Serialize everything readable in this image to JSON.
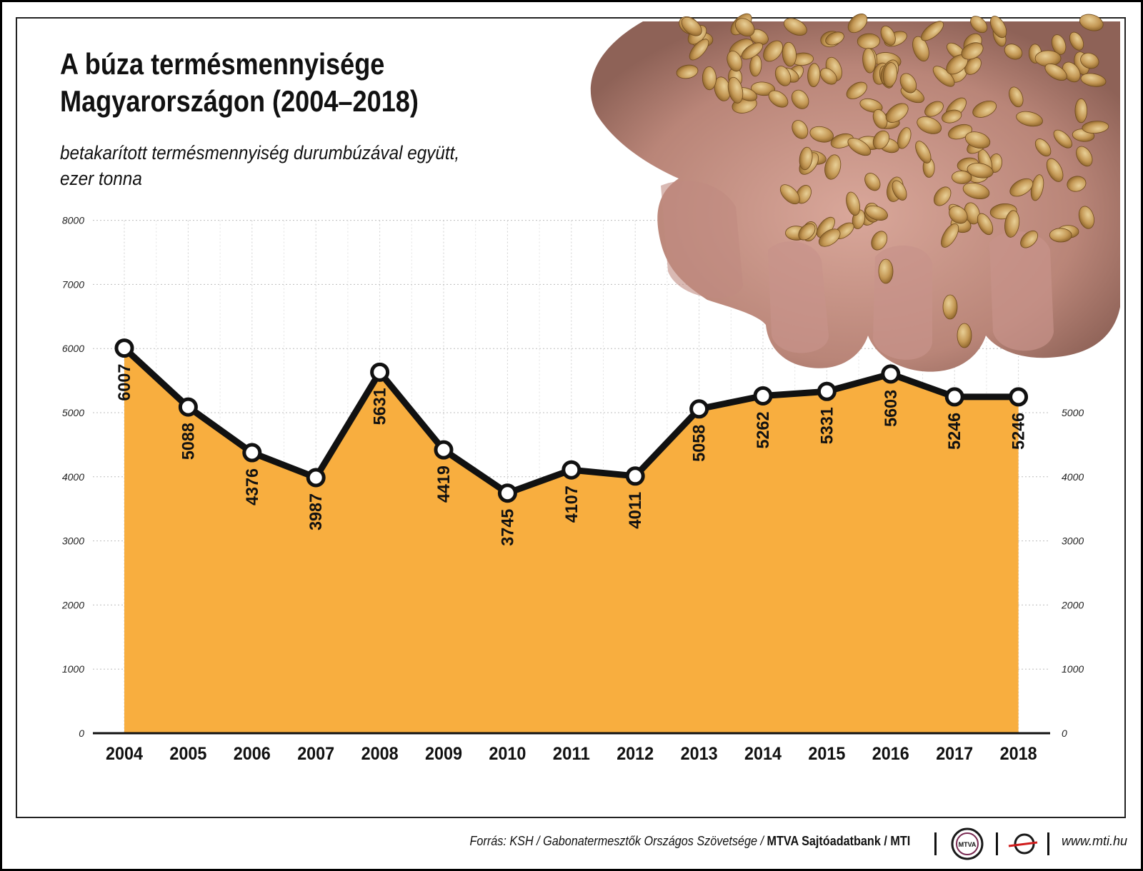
{
  "title_line1": "A búza termésmennyisége",
  "title_line2": "Magyarországon (2004–2018)",
  "subtitle_line1": "betakarított termésmennyiség durumbúzával együtt,",
  "subtitle_line2": "ezer tonna",
  "chart_data": {
    "type": "area",
    "title": "A búza termésmennyisége Magyarországon (2004–2018)",
    "subtitle": "betakarított termésmennyiség durumbúzával együtt, ezer tonna",
    "categories": [
      "2004",
      "2005",
      "2006",
      "2007",
      "2008",
      "2009",
      "2010",
      "2011",
      "2012",
      "2013",
      "2014",
      "2015",
      "2016",
      "2017",
      "2018"
    ],
    "values": [
      6007,
      5088,
      4376,
      3987,
      5631,
      4419,
      3745,
      4107,
      4011,
      5058,
      5262,
      5331,
      5603,
      5246,
      5246
    ],
    "ylim": [
      0,
      8000
    ],
    "yticks_left": [
      0,
      1000,
      2000,
      3000,
      4000,
      5000,
      6000,
      7000,
      8000
    ],
    "yticks_right": [
      0,
      1000,
      2000,
      3000,
      4000,
      5000
    ],
    "xlabel": "",
    "ylabel": "",
    "grid": true,
    "fill_color": "#F8AE3F",
    "line_color": "#111111"
  },
  "footer": {
    "source_prefix": "Forrás: KSH / Gabonatermesztők Országos Szövetsége / ",
    "source_bold": "MTVA Sajtóadatbank / MTI",
    "logo_text": "MTVA",
    "website": "www.mti.hu"
  }
}
